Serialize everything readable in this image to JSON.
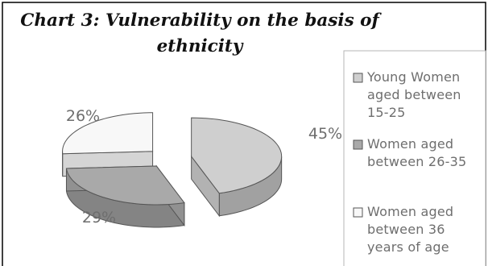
{
  "chart_data": {
    "type": "pie",
    "title_lines": [
      "Chart 3: Vulnerability on the basis of",
      "ethnicity"
    ],
    "slices": [
      {
        "label": "Young Women aged between 15-25",
        "value": 45,
        "data_label": "45%",
        "color": "#cfcfcf"
      },
      {
        "label": "Women aged between 26-35",
        "value": 29,
        "data_label": "29%",
        "color": "#a9a9a9"
      },
      {
        "label": "Women aged between 36 years of age",
        "value": 26,
        "data_label": "26%",
        "color": "#f8f8f8"
      }
    ],
    "legend_position": "right",
    "legend_lines": [
      [
        "Young Women",
        "aged between",
        "15-25"
      ],
      [
        "Women aged",
        "between 26-35"
      ],
      [
        "Women aged",
        "between 36",
        "years of age"
      ]
    ],
    "exploded": true,
    "three_d": true
  }
}
